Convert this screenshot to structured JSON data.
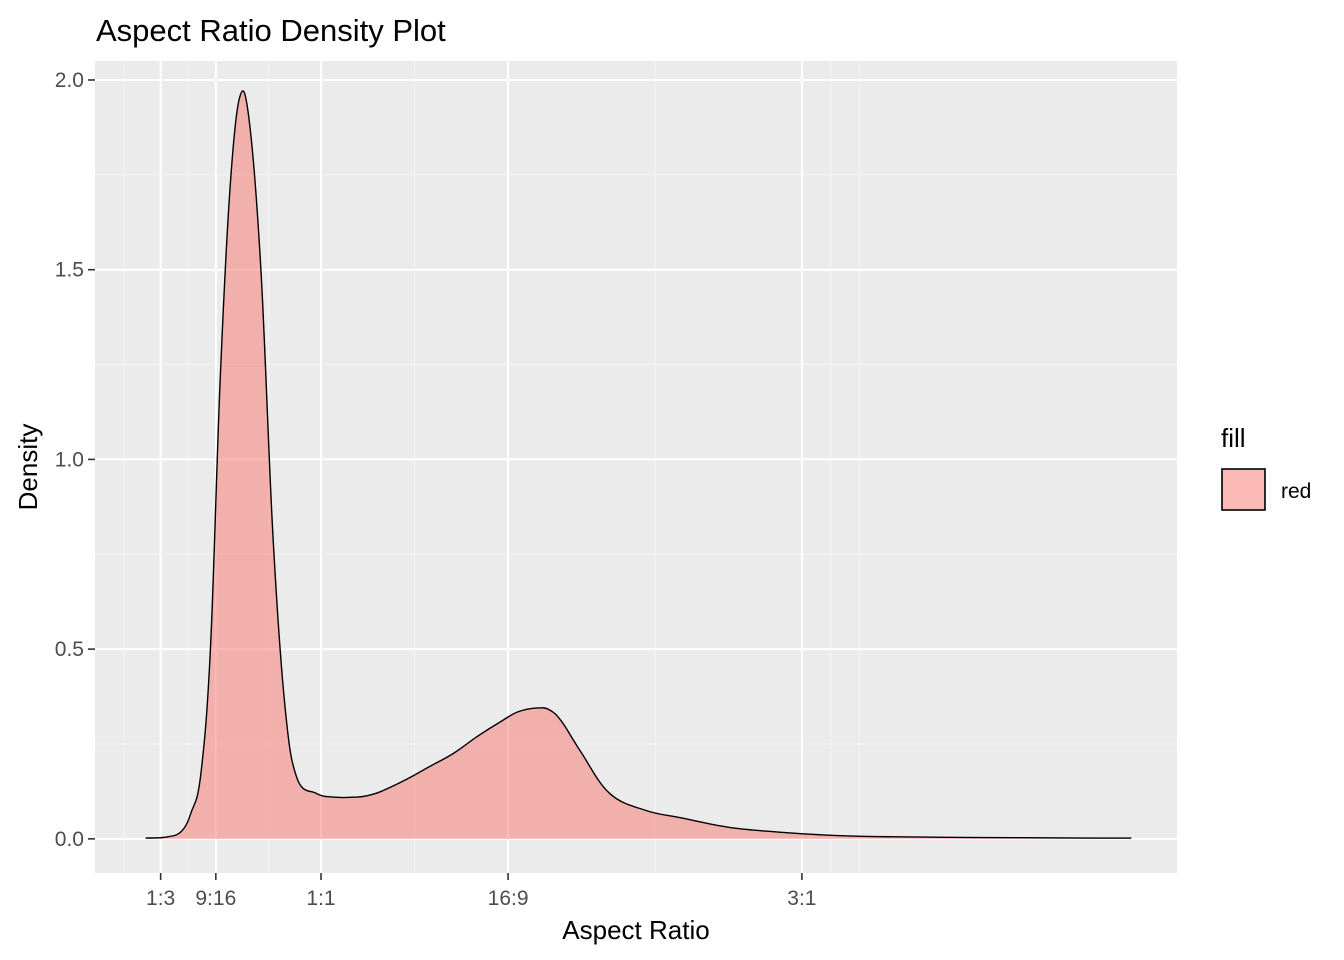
{
  "chart_data": {
    "type": "area",
    "title": "Aspect Ratio Density Plot",
    "xlabel": "Aspect Ratio",
    "ylabel": "Density",
    "xlim": [
      0.06,
      4.56
    ],
    "ylim": [
      -0.09,
      2.05
    ],
    "x_ticks": [
      {
        "value": 0.333,
        "label": "1:3"
      },
      {
        "value": 0.5625,
        "label": "9:16"
      },
      {
        "value": 1.0,
        "label": "1:1"
      },
      {
        "value": 1.778,
        "label": "16:9"
      },
      {
        "value": 3.0,
        "label": "3:1"
      }
    ],
    "x_minor_breaks": [
      0.18,
      0.448,
      0.781,
      1.389,
      2.389,
      3.12,
      3.24
    ],
    "y_ticks": [
      {
        "value": 0.0,
        "label": "0.0"
      },
      {
        "value": 0.5,
        "label": "0.5"
      },
      {
        "value": 1.0,
        "label": "1.0"
      },
      {
        "value": 1.5,
        "label": "1.5"
      },
      {
        "value": 2.0,
        "label": "2.0"
      }
    ],
    "y_minor_breaks": [
      0.25,
      0.75,
      1.25,
      1.75
    ],
    "series": [
      {
        "name": "red",
        "fill": "#F8766D",
        "fill_opacity": 0.5,
        "line_color": "#000000",
        "x": [
          0.27,
          0.36,
          0.42,
          0.46,
          0.5,
          0.54,
          0.58,
          0.62,
          0.66,
          0.7,
          0.75,
          0.8,
          0.85,
          0.9,
          0.98,
          1.05,
          1.15,
          1.2,
          1.25,
          1.35,
          1.45,
          1.55,
          1.65,
          1.75,
          1.82,
          1.9,
          1.95,
          2.0,
          2.08,
          2.2,
          2.35,
          2.5,
          2.7,
          2.9,
          3.1,
          3.3,
          3.6,
          3.9,
          4.2,
          4.37
        ],
        "y": [
          0.002,
          0.005,
          0.02,
          0.07,
          0.17,
          0.5,
          1.2,
          1.7,
          1.95,
          1.9,
          1.5,
          0.8,
          0.35,
          0.16,
          0.12,
          0.11,
          0.11,
          0.115,
          0.125,
          0.155,
          0.19,
          0.225,
          0.27,
          0.31,
          0.335,
          0.345,
          0.34,
          0.31,
          0.23,
          0.12,
          0.075,
          0.055,
          0.03,
          0.018,
          0.01,
          0.006,
          0.004,
          0.003,
          0.002,
          0.002
        ]
      }
    ],
    "legend": {
      "title": "fill",
      "position": "right",
      "entries": [
        {
          "label": "red",
          "color": "#F8766D"
        }
      ]
    },
    "grid": true
  }
}
